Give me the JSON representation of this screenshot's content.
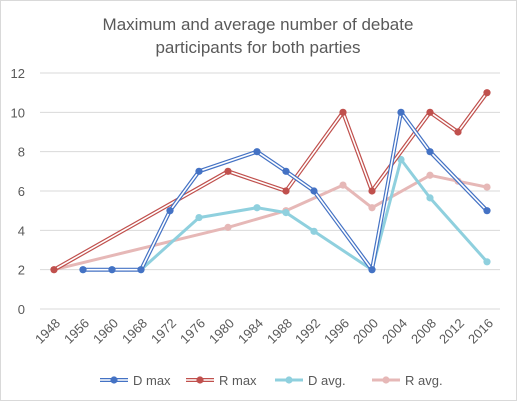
{
  "chart_data": {
    "type": "line",
    "title_lines": [
      "Maximum and average number of debate",
      "participants for both parties"
    ],
    "xlabel": "",
    "ylabel": "",
    "x_ticks": [
      "1948",
      "1956",
      "1960",
      "1968",
      "1972",
      "1976",
      "1980",
      "1984",
      "1988",
      "1992",
      "1996",
      "2000",
      "2004",
      "2008",
      "2012",
      "2016"
    ],
    "ylim": [
      0,
      12
    ],
    "y_ticks": [
      0,
      2,
      4,
      6,
      8,
      10,
      12
    ],
    "grid": true,
    "legend_position": "bottom",
    "series": [
      {
        "name": "D max",
        "color": "#4472c4",
        "stroke_width": 4,
        "outlined": true,
        "points": [
          [
            1956,
            2
          ],
          [
            1960,
            2
          ],
          [
            1968,
            2
          ],
          [
            1972,
            5
          ],
          [
            1976,
            7
          ],
          [
            1984,
            8
          ],
          [
            1988,
            7
          ],
          [
            1992,
            6
          ],
          [
            2000,
            2
          ],
          [
            2004,
            10
          ],
          [
            2008,
            8
          ],
          [
            2016,
            5
          ]
        ]
      },
      {
        "name": "R max",
        "color": "#c0504d",
        "stroke_width": 4,
        "outlined": true,
        "points": [
          [
            1948,
            2
          ],
          [
            1980,
            7
          ],
          [
            1988,
            6
          ],
          [
            1996,
            10
          ],
          [
            2000,
            6
          ],
          [
            2008,
            10
          ],
          [
            2012,
            9
          ],
          [
            2016,
            11
          ]
        ]
      },
      {
        "name": "D avg.",
        "color": "#8fd0de",
        "stroke_width": 3,
        "outlined": false,
        "points": [
          [
            1956,
            2
          ],
          [
            1960,
            2
          ],
          [
            1968,
            2
          ],
          [
            1976,
            4.65
          ],
          [
            1984,
            5.15
          ],
          [
            1988,
            4.9
          ],
          [
            1992,
            3.95
          ],
          [
            2000,
            2
          ],
          [
            2004,
            7.6
          ],
          [
            2008,
            5.65
          ],
          [
            2016,
            2.4
          ]
        ]
      },
      {
        "name": "R avg.",
        "color": "#e6b8b7",
        "stroke_width": 3,
        "outlined": false,
        "points": [
          [
            1948,
            2
          ],
          [
            1980,
            4.15
          ],
          [
            1988,
            5
          ],
          [
            1996,
            6.3
          ],
          [
            2000,
            5.15
          ],
          [
            2008,
            6.8
          ],
          [
            2012,
            6.5
          ],
          [
            2016,
            6.2
          ]
        ]
      }
    ]
  }
}
